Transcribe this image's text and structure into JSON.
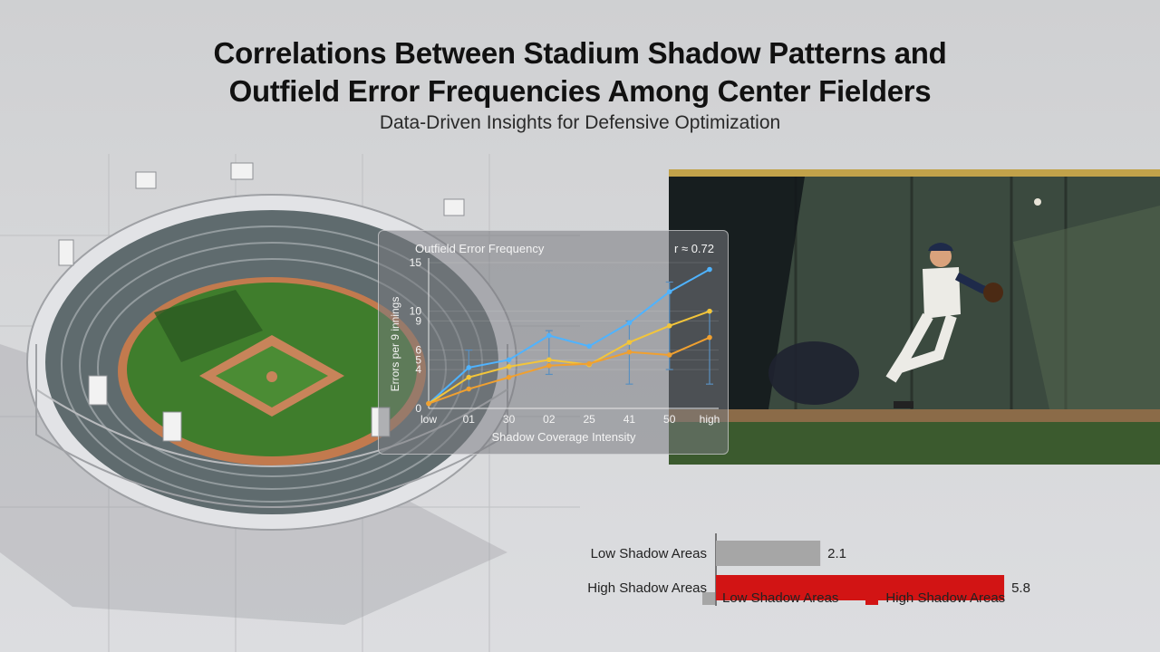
{
  "title_line1": "Correlations Between Stadium Shadow Patterns and",
  "title_line2": "Outfield Error Frequencies Among Center Fielders",
  "subtitle": "Data-Driven Insights for Defensive Optimization",
  "chart_data": [
    {
      "type": "line",
      "title": "Outfield Error Frequency",
      "annotation": "r ≈ 0.72",
      "xlabel": "Shadow Coverage Intensity",
      "ylabel": "Errors per 9 innings",
      "categories": [
        "low",
        "01",
        "30",
        "02",
        "25",
        "41",
        "50",
        "high"
      ],
      "yticks": [
        0,
        4,
        5,
        6,
        9,
        10,
        15
      ],
      "ylim": [
        0,
        15
      ],
      "series": [
        {
          "color": "#4fb3ff",
          "values": [
            0.5,
            4.2,
            5.0,
            7.5,
            6.4,
            8.8,
            12.0,
            14.3
          ]
        },
        {
          "color": "#f3c53a",
          "values": [
            0.5,
            3.2,
            4.3,
            5.0,
            4.5,
            6.8,
            8.5,
            10.0
          ]
        },
        {
          "color": "#f0a030",
          "values": [
            0.5,
            2.0,
            3.2,
            4.4,
            4.6,
            5.8,
            5.5,
            7.3
          ]
        }
      ],
      "error_bars": [
        {
          "category": "01",
          "low": 2.0,
          "high": 6.0
        },
        {
          "category": "02",
          "low": 3.5,
          "high": 8.0
        },
        {
          "category": "41",
          "low": 2.5,
          "high": 9.0
        },
        {
          "category": "50",
          "low": 4.0,
          "high": 13.0
        },
        {
          "category": "high",
          "low": 2.5,
          "high": 10.0
        }
      ]
    },
    {
      "type": "bar",
      "orientation": "horizontal",
      "categories": [
        "Low Shadow Areas",
        "High Shadow Areas"
      ],
      "values": [
        2.1,
        5.8
      ],
      "value_labels": [
        "2.1",
        "5.8"
      ],
      "colors": [
        "#a6a6a6",
        "#d21414"
      ],
      "xlim": [
        0,
        6.2
      ],
      "legend": [
        "Low Shadow Areas",
        "High Shadow Areas"
      ],
      "legend_position": "bottom"
    }
  ]
}
